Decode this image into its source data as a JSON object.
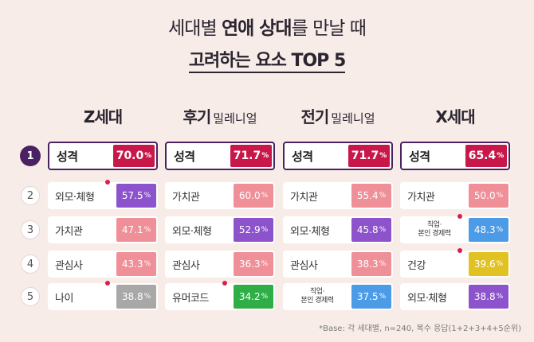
{
  "title": {
    "line1_pre": "세대별 ",
    "line1_bold": "연애 상대",
    "line1_post": "를 만날 때",
    "line2": "고려하는 요소 TOP 5"
  },
  "generations": [
    {
      "main": "Z세대",
      "sub": ""
    },
    {
      "main": "후기",
      "sub": "밀레니얼"
    },
    {
      "main": "전기",
      "sub": "밀레니얼"
    },
    {
      "main": "X세대",
      "sub": ""
    }
  ],
  "ranks": [
    "1",
    "2",
    "3",
    "4",
    "5"
  ],
  "unit": "%",
  "colors": {
    "accent": "#4a2263",
    "crimson": "#c8184a",
    "pink": "#ef8f98",
    "purple": "#8c53cc",
    "green": "#2fae47",
    "yellow": "#e2c222",
    "blue": "#4b9be6",
    "gray": "#a8a8a8"
  },
  "columns": [
    {
      "items": [
        {
          "label": "성격",
          "value": "70.0",
          "color": "crimson"
        },
        {
          "label": "외모·체형",
          "value": "57.5",
          "color": "purple",
          "new": true
        },
        {
          "label": "가치관",
          "value": "47.1",
          "color": "pink"
        },
        {
          "label": "관심사",
          "value": "43.3",
          "color": "pink"
        },
        {
          "label": "나이",
          "value": "38.8",
          "color": "gray",
          "new": true
        }
      ]
    },
    {
      "items": [
        {
          "label": "성격",
          "value": "71.7",
          "color": "crimson"
        },
        {
          "label": "가치관",
          "value": "60.0",
          "color": "pink"
        },
        {
          "label": "외모·체형",
          "value": "52.9",
          "color": "purple"
        },
        {
          "label": "관심사",
          "value": "36.3",
          "color": "pink"
        },
        {
          "label": "유머코드",
          "value": "34.2",
          "color": "green",
          "new": true
        }
      ]
    },
    {
      "items": [
        {
          "label": "성격",
          "value": "71.7",
          "color": "crimson"
        },
        {
          "label": "가치관",
          "value": "55.4",
          "color": "pink"
        },
        {
          "label": "외모·체형",
          "value": "45.8",
          "color": "purple"
        },
        {
          "label": "관심사",
          "value": "38.3",
          "color": "pink"
        },
        {
          "label": "직업·\n본인 경제력",
          "value": "37.5",
          "color": "blue"
        }
      ]
    },
    {
      "items": [
        {
          "label": "성격",
          "value": "65.4",
          "color": "crimson"
        },
        {
          "label": "가치관",
          "value": "50.0",
          "color": "pink"
        },
        {
          "label": "직업·\n본인 경제력",
          "value": "48.3",
          "color": "blue",
          "new": true
        },
        {
          "label": "건강",
          "value": "39.6",
          "color": "yellow",
          "new": true
        },
        {
          "label": "외모·체형",
          "value": "38.8",
          "color": "purple"
        }
      ]
    }
  ],
  "footnote": "*Base: 각 세대별, n=240, 복수 응답(1+2+3+4+5순위)"
}
